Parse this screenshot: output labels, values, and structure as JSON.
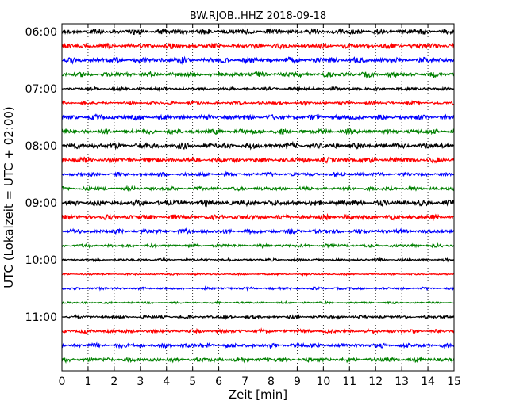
{
  "chart_data": {
    "type": "line",
    "title": "BW.RJOB..HHZ 2018-09-18",
    "xlabel": "Zeit  [min]",
    "ylabel": "UTC (Lokalzeit = UTC + 02:00)",
    "xlim": [
      0,
      15
    ],
    "xticks": [
      "0",
      "1",
      "2",
      "3",
      "4",
      "5",
      "6",
      "7",
      "8",
      "9",
      "10",
      "11",
      "12",
      "13",
      "14",
      "15"
    ],
    "yticks": [
      "06:00",
      "07:00",
      "08:00",
      "09:00",
      "10:00",
      "11:00"
    ],
    "grid": "vertical dotted",
    "trace_colors": [
      "#000000",
      "#ff0000",
      "#0000ff",
      "#008000"
    ],
    "traces": [
      {
        "label": "06:00",
        "amplitude": 0.45,
        "color": "#000000"
      },
      {
        "label": "06:15",
        "amplitude": 0.4,
        "color": "#ff0000"
      },
      {
        "label": "06:30",
        "amplitude": 0.45,
        "color": "#0000ff"
      },
      {
        "label": "06:45",
        "amplitude": 0.4,
        "color": "#008000"
      },
      {
        "label": "07:00",
        "amplitude": 0.25,
        "color": "#000000"
      },
      {
        "label": "07:15",
        "amplitude": 0.25,
        "color": "#ff0000"
      },
      {
        "label": "07:30",
        "amplitude": 0.4,
        "color": "#0000ff"
      },
      {
        "label": "07:45",
        "amplitude": 0.4,
        "color": "#008000"
      },
      {
        "label": "08:00",
        "amplitude": 0.45,
        "color": "#000000"
      },
      {
        "label": "08:15",
        "amplitude": 0.4,
        "color": "#ff0000"
      },
      {
        "label": "08:30",
        "amplitude": 0.3,
        "color": "#0000ff"
      },
      {
        "label": "08:45",
        "amplitude": 0.3,
        "color": "#008000"
      },
      {
        "label": "09:00",
        "amplitude": 0.45,
        "color": "#000000"
      },
      {
        "label": "09:15",
        "amplitude": 0.4,
        "color": "#ff0000"
      },
      {
        "label": "09:30",
        "amplitude": 0.35,
        "color": "#0000ff"
      },
      {
        "label": "09:45",
        "amplitude": 0.25,
        "color": "#008000"
      },
      {
        "label": "10:00",
        "amplitude": 0.2,
        "color": "#000000"
      },
      {
        "label": "10:15",
        "amplitude": 0.15,
        "color": "#ff0000"
      },
      {
        "label": "10:30",
        "amplitude": 0.2,
        "color": "#0000ff"
      },
      {
        "label": "10:45",
        "amplitude": 0.15,
        "color": "#008000"
      },
      {
        "label": "11:00",
        "amplitude": 0.25,
        "color": "#000000"
      },
      {
        "label": "11:15",
        "amplitude": 0.3,
        "color": "#ff0000"
      },
      {
        "label": "11:30",
        "amplitude": 0.35,
        "color": "#0000ff"
      },
      {
        "label": "11:45",
        "amplitude": 0.35,
        "color": "#008000"
      }
    ]
  }
}
